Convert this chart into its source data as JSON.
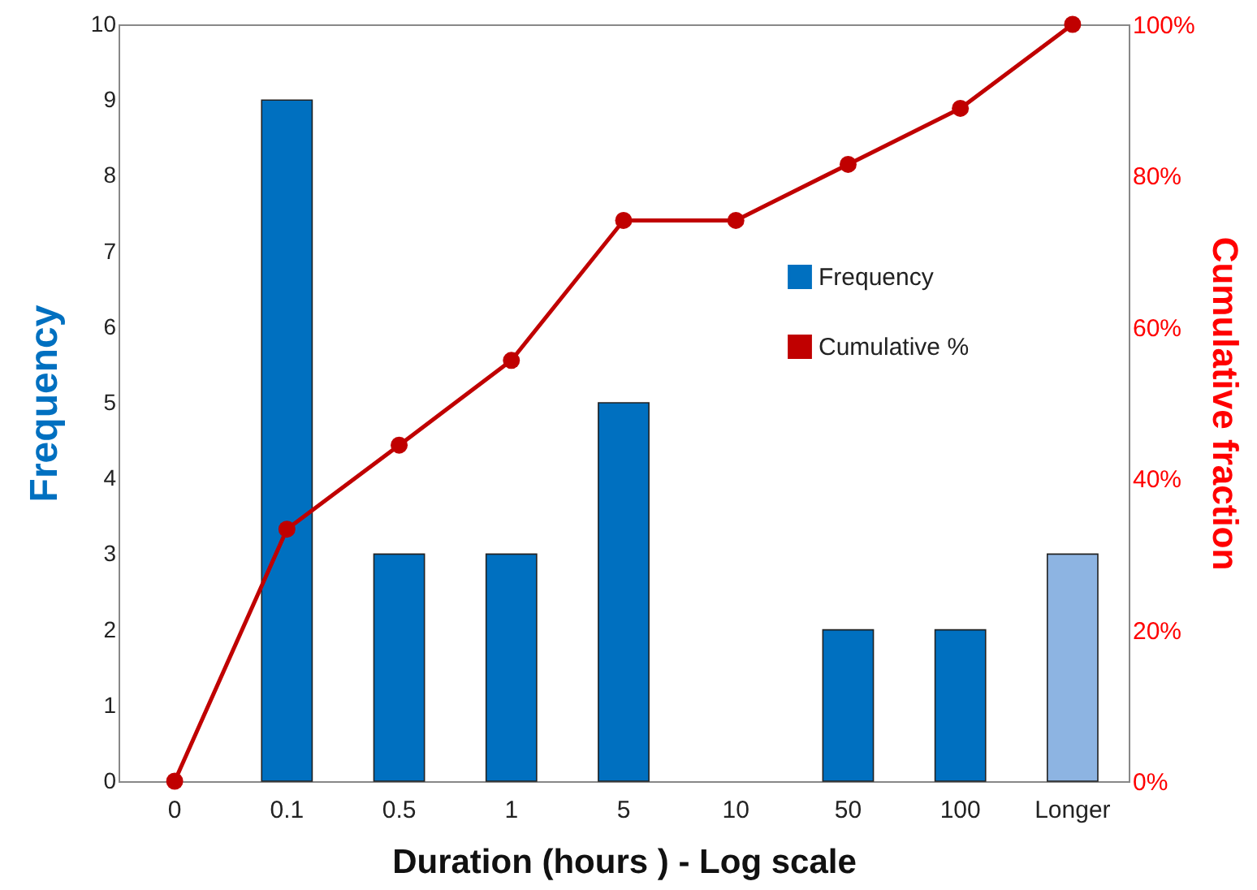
{
  "chart_data": {
    "type": "bar",
    "xlabel": "Duration (hours ) - Log scale",
    "ylabel": "Frequency",
    "y2label": "Cumulative fraction",
    "categories": [
      "0",
      "0.1",
      "0.5",
      "1",
      "5",
      "10",
      "50",
      "100",
      "Longer"
    ],
    "series": [
      {
        "name": "Frequency",
        "color": "#0070c0",
        "colors": [
          "#0070c0",
          "#0070c0",
          "#0070c0",
          "#0070c0",
          "#0070c0",
          "#0070c0",
          "#0070c0",
          "#0070c0",
          "#8db4e2"
        ],
        "values": [
          0,
          9,
          3,
          3,
          5,
          0,
          2,
          2,
          3
        ]
      },
      {
        "name": "Cumulative %",
        "type": "line",
        "axis": "y2",
        "color": "#c00000",
        "values": [
          0,
          33.3,
          44.4,
          55.6,
          74.1,
          74.1,
          81.5,
          88.9,
          100
        ]
      }
    ],
    "ylim": [
      0,
      10
    ],
    "yticks": [
      0,
      1,
      2,
      3,
      4,
      5,
      6,
      7,
      8,
      9,
      10
    ],
    "y2lim": [
      0,
      100
    ],
    "y2ticks": [
      {
        "value": 0,
        "label": "0%"
      },
      {
        "value": 20,
        "label": "20%"
      },
      {
        "value": 40,
        "label": "40%"
      },
      {
        "value": 60,
        "label": "60%"
      },
      {
        "value": 80,
        "label": "80%"
      },
      {
        "value": 100,
        "label": "100%"
      }
    ],
    "grid": false,
    "legend": "top right",
    "marker": "circle"
  }
}
